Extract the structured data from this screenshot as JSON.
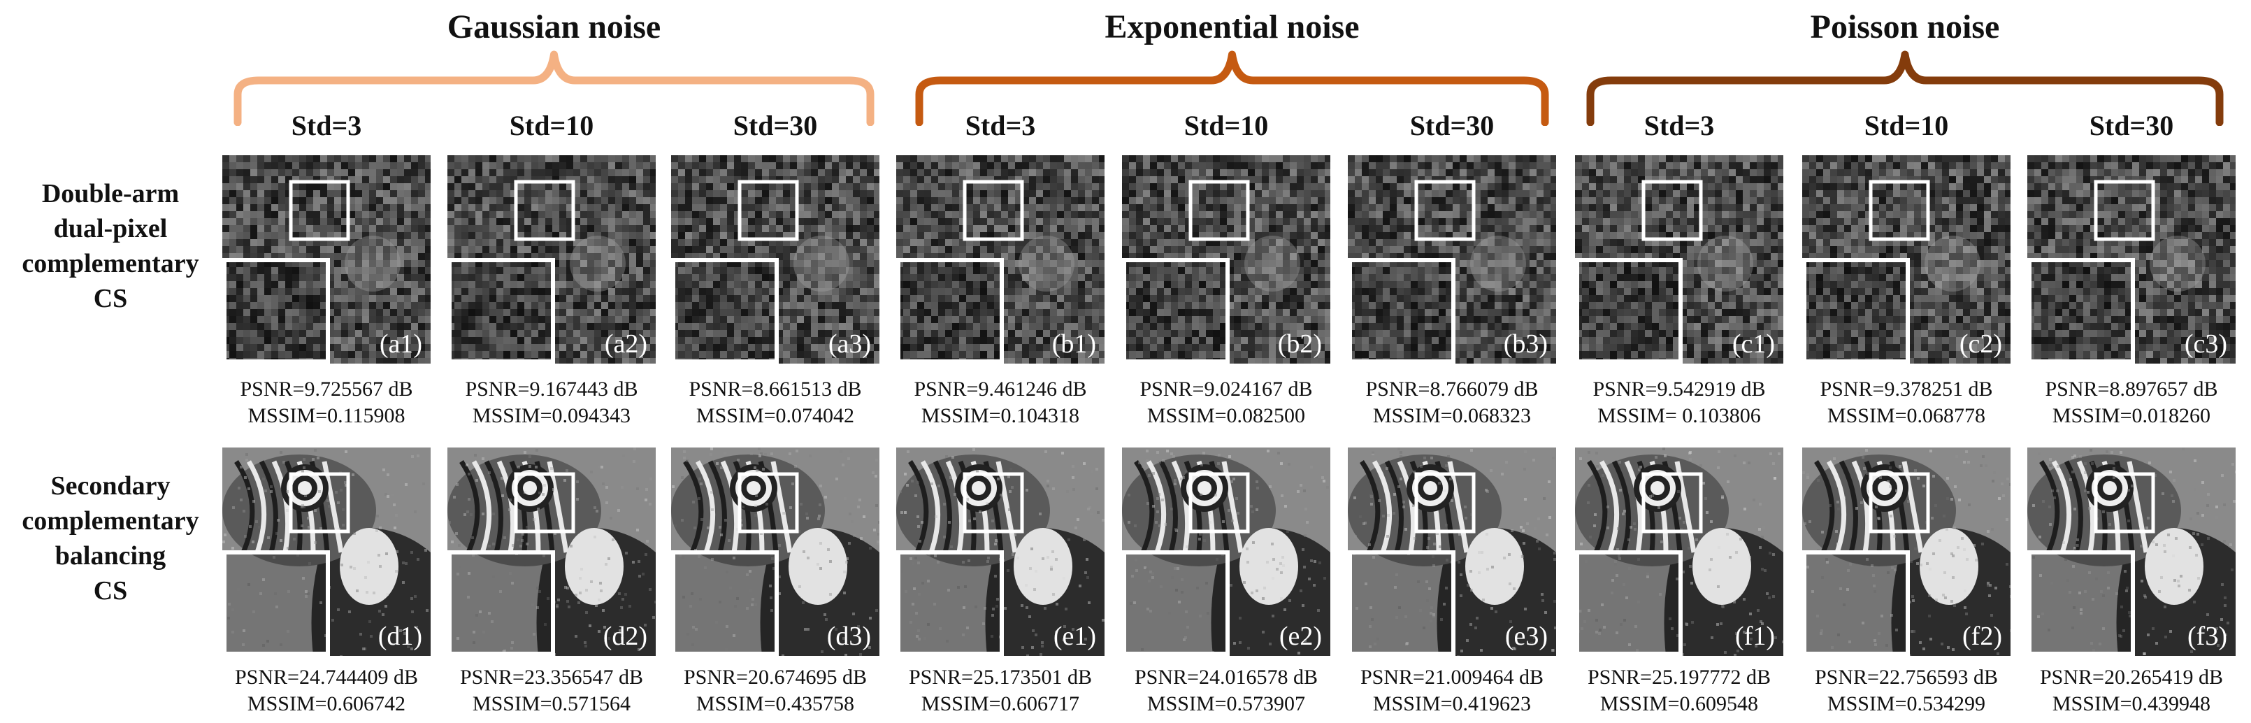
{
  "groups": [
    {
      "title": "Gaussian noise",
      "color": "#f4b183"
    },
    {
      "title": "Exponential noise",
      "color": "#c55a11"
    },
    {
      "title": "Poisson noise",
      "color": "#843c0c"
    }
  ],
  "columns": [
    "Std=3",
    "Std=10",
    "Std=30",
    "Std=3",
    "Std=10",
    "Std=30",
    "Std=3",
    "Std=10",
    "Std=30"
  ],
  "rows": [
    {
      "label_lines": [
        "Double-arm",
        "dual-pixel",
        "complementary",
        "CS"
      ],
      "cells": [
        {
          "tag": "(a1)",
          "psnr": "PSNR=9.725567 dB",
          "mssim": "MSSIM=0.115908"
        },
        {
          "tag": "(a2)",
          "psnr": "PSNR=9.167443 dB",
          "mssim": "MSSIM=0.094343"
        },
        {
          "tag": "(a3)",
          "psnr": "PSNR=8.661513 dB",
          "mssim": "MSSIM=0.074042"
        },
        {
          "tag": "(b1)",
          "psnr": "PSNR=9.461246 dB",
          "mssim": "MSSIM=0.104318"
        },
        {
          "tag": "(b2)",
          "psnr": "PSNR=9.024167 dB",
          "mssim": "MSSIM=0.082500"
        },
        {
          "tag": "(b3)",
          "psnr": "PSNR=8.766079 dB",
          "mssim": "MSSIM=0.068323"
        },
        {
          "tag": "(c1)",
          "psnr": "PSNR=9.542919 dB",
          "mssim": "MSSIM= 0.103806"
        },
        {
          "tag": "(c2)",
          "psnr": "PSNR=9.378251 dB",
          "mssim": "MSSIM=0.068778"
        },
        {
          "tag": "(c3)",
          "psnr": "PSNR=8.897657 dB",
          "mssim": "MSSIM=0.018260"
        }
      ]
    },
    {
      "label_lines": [
        "Secondary",
        "complementary",
        "balancing",
        "CS"
      ],
      "cells": [
        {
          "tag": "(d1)",
          "psnr": "PSNR=24.744409 dB",
          "mssim": "MSSIM=0.606742"
        },
        {
          "tag": "(d2)",
          "psnr": "PSNR=23.356547 dB",
          "mssim": "MSSIM=0.571564"
        },
        {
          "tag": "(d3)",
          "psnr": "PSNR=20.674695 dB",
          "mssim": "MSSIM=0.435758"
        },
        {
          "tag": "(e1)",
          "psnr": "PSNR=25.173501 dB",
          "mssim": "MSSIM=0.606717"
        },
        {
          "tag": "(e2)",
          "psnr": "PSNR=24.016578 dB",
          "mssim": "MSSIM=0.573907"
        },
        {
          "tag": "(e3)",
          "psnr": "PSNR=21.009464 dB",
          "mssim": "MSSIM=0.419623"
        },
        {
          "tag": "(f1)",
          "psnr": "PSNR=25.197772 dB",
          "mssim": "MSSIM=0.609548"
        },
        {
          "tag": "(f2)",
          "psnr": "PSNR=22.756593 dB",
          "mssim": "MSSIM=0.534299"
        },
        {
          "tag": "(f3)",
          "psnr": "PSNR=20.265419 dB",
          "mssim": "MSSIM=0.439948"
        }
      ]
    }
  ]
}
